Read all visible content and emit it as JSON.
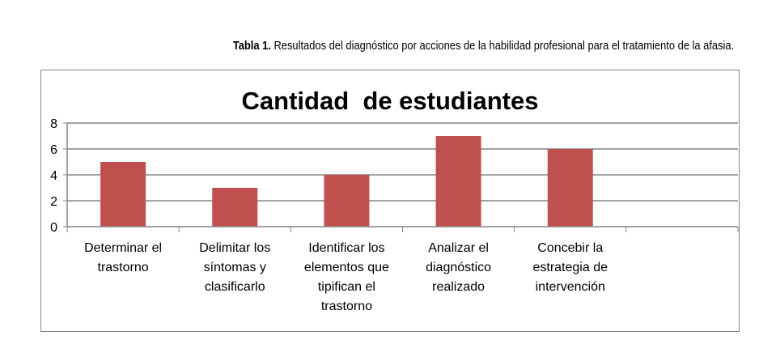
{
  "caption": {
    "label": "Tabla 1.",
    "text": " Resultados del diagnóstico por acciones de la habilidad profesional para el tratamiento de la afasia."
  },
  "colors": {
    "bar": "#c0504d",
    "grid": "#868686",
    "text": "#000000"
  },
  "chart_data": {
    "type": "bar",
    "title": "Cantidad  de estudiantes",
    "categories": [
      [
        "Determinar el",
        "trastorno"
      ],
      [
        "Delimitar los",
        "síntomas y",
        "clasificarlo"
      ],
      [
        "Identificar los",
        "elementos que",
        "tipifican el",
        "trastorno"
      ],
      [
        "Analizar el",
        "diagnóstico",
        "realizado"
      ],
      [
        "Concebir la",
        "estrategia de",
        "intervención"
      ],
      [
        ""
      ]
    ],
    "values": [
      5,
      3,
      4,
      7,
      6,
      null
    ],
    "ylim": [
      0,
      8
    ],
    "yticks": [
      0,
      2,
      4,
      6,
      8
    ],
    "grid": true,
    "legend": "none",
    "xlabel": "",
    "ylabel": ""
  }
}
